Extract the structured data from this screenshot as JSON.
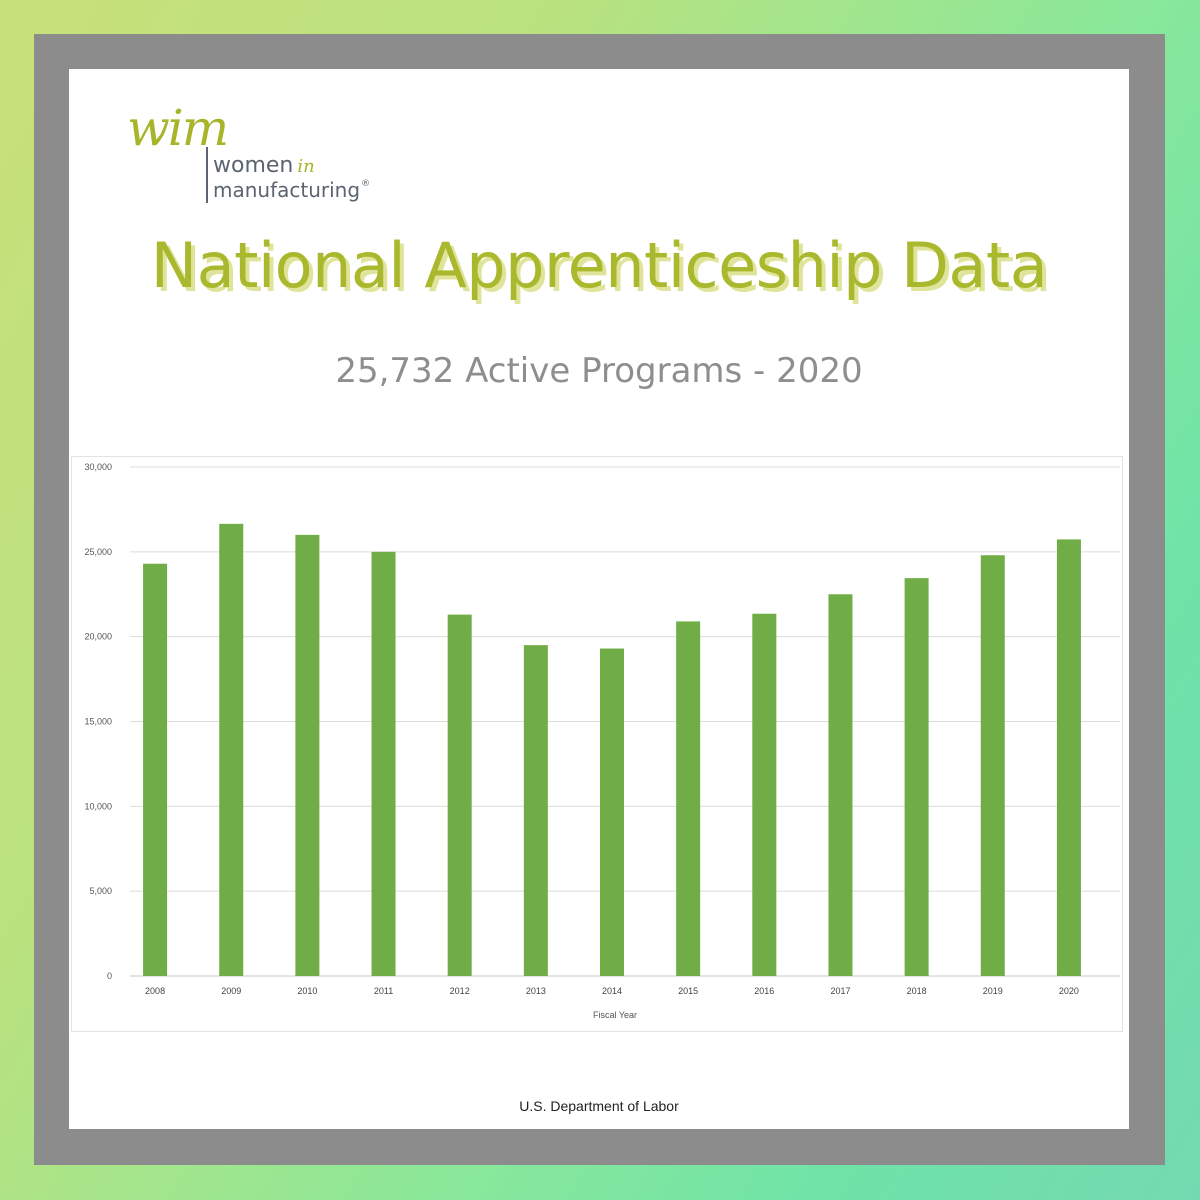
{
  "logo": {
    "wim": "wim",
    "line1": "women",
    "line1_in": "in",
    "line2": "manufacturing",
    "reg": "®"
  },
  "title": "National Apprenticeship Data",
  "subtitle": "25,732 Active Programs - 2020",
  "source": "U.S. Department of Labor",
  "colors": {
    "bar": "#70ad47",
    "title": "#a9b82c",
    "frame": "#8c8c8c"
  },
  "chart_data": {
    "type": "bar",
    "categories": [
      "2008",
      "2009",
      "2010",
      "2011",
      "2012",
      "2013",
      "2014",
      "2015",
      "2016",
      "2017",
      "2018",
      "2019",
      "2020"
    ],
    "values": [
      24300,
      26650,
      26000,
      25000,
      21300,
      19500,
      19300,
      20900,
      21350,
      22500,
      23450,
      24800,
      25732
    ],
    "ylim": [
      0,
      30000
    ],
    "yticks": [
      0,
      5000,
      10000,
      15000,
      20000,
      25000,
      30000
    ],
    "ytick_labels": [
      "0",
      "5,000",
      "10,000",
      "15,000",
      "20,000",
      "25,000",
      "30,000"
    ],
    "xlabel": "Fiscal Year",
    "ylabel": "",
    "grid": true,
    "legend": "none"
  }
}
